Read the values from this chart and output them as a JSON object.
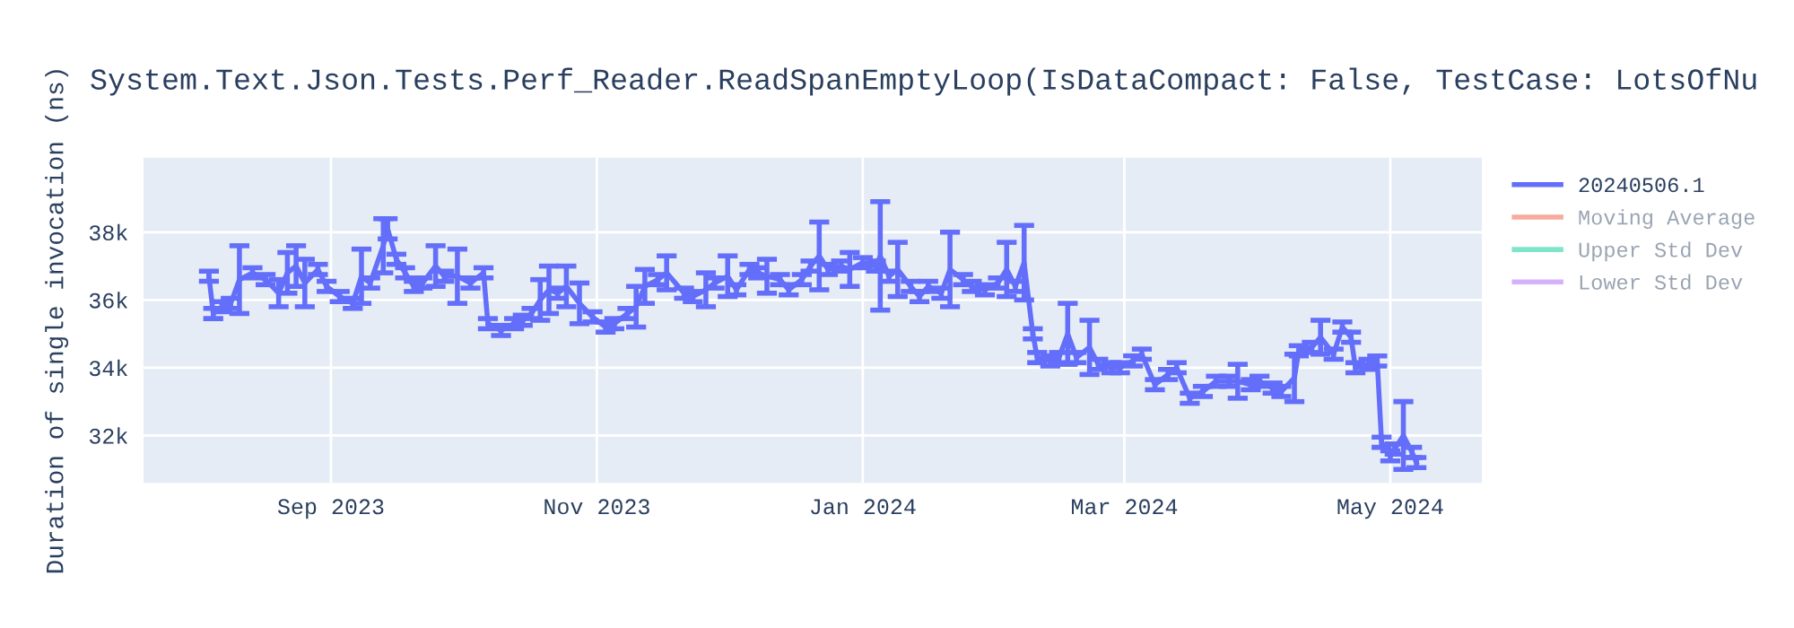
{
  "chart_data": {
    "type": "line",
    "title": "System.Text.Json.Tests.Perf_Reader.ReadSpanEmptyLoop(IsDataCompact: False, TestCase: LotsOfNu",
    "ylabel": "Duration of single invocation (ns)",
    "x": [
      "2023-08-04",
      "2023-08-05",
      "2023-08-07",
      "2023-08-09",
      "2023-08-11",
      "2023-08-14",
      "2023-08-17",
      "2023-08-20",
      "2023-08-22",
      "2023-08-24",
      "2023-08-26",
      "2023-08-29",
      "2023-08-31",
      "2023-09-03",
      "2023-09-06",
      "2023-09-08",
      "2023-09-10",
      "2023-09-13",
      "2023-09-14",
      "2023-09-16",
      "2023-09-18",
      "2023-09-20",
      "2023-09-22",
      "2023-09-25",
      "2023-09-27",
      "2023-09-30",
      "2023-10-03",
      "2023-10-06",
      "2023-10-07",
      "2023-10-10",
      "2023-10-13",
      "2023-10-15",
      "2023-10-17",
      "2023-10-19",
      "2023-10-21",
      "2023-10-23",
      "2023-10-25",
      "2023-10-28",
      "2023-10-31",
      "2023-11-03",
      "2023-11-05",
      "2023-11-08",
      "2023-11-10",
      "2023-11-12",
      "2023-11-15",
      "2023-11-17",
      "2023-11-21",
      "2023-11-23",
      "2023-11-26",
      "2023-11-28",
      "2023-12-01",
      "2023-12-03",
      "2023-12-06",
      "2023-12-08",
      "2023-12-10",
      "2023-12-13",
      "2023-12-15",
      "2023-12-18",
      "2023-12-20",
      "2023-12-22",
      "2023-12-24",
      "2023-12-27",
      "2023-12-29",
      "2024-01-01",
      "2024-01-04",
      "2024-01-05",
      "2024-01-07",
      "2024-01-09",
      "2024-01-12",
      "2024-01-14",
      "2024-01-16",
      "2024-01-19",
      "2024-01-21",
      "2024-01-24",
      "2024-01-26",
      "2024-01-29",
      "2024-02-01",
      "2024-02-03",
      "2024-02-05",
      "2024-02-07",
      "2024-02-09",
      "2024-02-10",
      "2024-02-13",
      "2024-02-15",
      "2024-02-17",
      "2024-02-19",
      "2024-02-22",
      "2024-02-24",
      "2024-02-27",
      "2024-02-29",
      "2024-03-03",
      "2024-03-05",
      "2024-03-08",
      "2024-03-11",
      "2024-03-13",
      "2024-03-16",
      "2024-03-19",
      "2024-03-22",
      "2024-03-25",
      "2024-03-27",
      "2024-03-30",
      "2024-04-01",
      "2024-04-04",
      "2024-04-06",
      "2024-04-09",
      "2024-04-10",
      "2024-04-13",
      "2024-04-15",
      "2024-04-18",
      "2024-04-20",
      "2024-04-22",
      "2024-04-23",
      "2024-04-26",
      "2024-04-28",
      "2024-04-29",
      "2024-05-01",
      "2024-05-02",
      "2024-05-04",
      "2024-05-06",
      "2024-05-07"
    ],
    "series": [
      {
        "name": "20240506.1",
        "color": "#636efa",
        "values": [
          36700,
          35600,
          35800,
          35900,
          36600,
          36800,
          36600,
          36200,
          36800,
          37000,
          36500,
          36900,
          36400,
          36100,
          35900,
          36700,
          36500,
          37600,
          38100,
          37200,
          36800,
          36400,
          36500,
          37000,
          36700,
          36700,
          36500,
          36800,
          35300,
          35100,
          35300,
          35400,
          35600,
          36000,
          36300,
          36200,
          36400,
          35900,
          35500,
          35200,
          35300,
          35600,
          35800,
          36400,
          36600,
          36800,
          36200,
          36100,
          36300,
          36500,
          36700,
          36300,
          36900,
          36800,
          36700,
          36600,
          36300,
          36600,
          37000,
          37300,
          36900,
          37000,
          36900,
          37100,
          37000,
          37300,
          36700,
          36900,
          36400,
          36100,
          36400,
          36200,
          36900,
          36600,
          36400,
          36300,
          36500,
          36900,
          36400,
          37100,
          35000,
          34300,
          34200,
          34300,
          35000,
          34300,
          34600,
          34100,
          34000,
          34000,
          34200,
          34400,
          33500,
          33800,
          34000,
          33100,
          33300,
          33600,
          33600,
          33600,
          33500,
          33600,
          33400,
          33300,
          33700,
          34500,
          34600,
          34900,
          34400,
          35200,
          34900,
          34000,
          34100,
          34200,
          31800,
          31400,
          31600,
          32000,
          31500,
          31200
        ],
        "errors": [
          150,
          150,
          150,
          150,
          1000,
          150,
          150,
          400,
          600,
          600,
          700,
          150,
          150,
          150,
          150,
          800,
          150,
          800,
          300,
          150,
          150,
          150,
          150,
          600,
          150,
          800,
          150,
          150,
          150,
          150,
          150,
          150,
          150,
          600,
          700,
          150,
          600,
          600,
          150,
          150,
          150,
          150,
          600,
          500,
          150,
          500,
          150,
          150,
          500,
          150,
          600,
          150,
          150,
          150,
          500,
          150,
          150,
          150,
          150,
          1000,
          150,
          150,
          500,
          150,
          150,
          1600,
          150,
          800,
          150,
          150,
          150,
          150,
          1100,
          150,
          150,
          150,
          150,
          800,
          150,
          1100,
          150,
          150,
          150,
          150,
          900,
          150,
          800,
          150,
          150,
          150,
          150,
          150,
          150,
          150,
          150,
          150,
          150,
          150,
          150,
          500,
          150,
          150,
          150,
          150,
          700,
          150,
          150,
          500,
          150,
          150,
          150,
          150,
          150,
          150,
          150,
          150,
          150,
          1000,
          150,
          150
        ]
      },
      {
        "name": "Moving Average",
        "color": "#ef553b",
        "values": [
          null,
          null,
          null,
          null,
          null,
          null,
          null,
          null,
          null,
          null,
          null,
          null,
          null,
          null,
          null,
          null,
          null,
          null,
          null,
          null,
          null,
          null,
          null,
          null,
          null,
          null,
          null,
          null,
          null,
          null,
          null,
          null,
          null,
          null,
          null,
          null,
          null,
          null,
          null,
          null,
          null,
          null,
          null,
          null,
          null,
          null,
          null,
          null,
          null,
          null,
          null,
          null,
          null,
          null,
          null,
          null,
          null,
          null,
          null,
          null,
          null,
          null,
          null,
          null,
          null,
          null,
          null,
          null,
          null,
          null,
          null,
          null,
          null,
          null,
          null,
          null,
          null,
          null,
          null,
          null,
          null,
          null,
          null,
          null,
          null,
          null,
          null,
          null,
          null,
          null,
          null,
          null,
          null,
          null,
          null,
          null,
          null,
          null,
          null,
          null,
          null,
          null,
          null,
          null,
          null,
          null,
          null,
          null,
          null,
          null,
          null,
          null,
          null,
          null,
          null,
          null,
          null,
          null,
          null,
          null
        ]
      },
      {
        "name": "Upper Std Dev",
        "color": "#00cc96",
        "values": [
          null,
          null,
          null,
          null,
          null,
          null,
          null,
          null,
          null,
          null,
          null,
          null,
          null,
          null,
          null,
          null,
          null,
          null,
          null,
          null,
          null,
          null,
          null,
          null,
          null,
          null,
          null,
          null,
          null,
          null,
          null,
          null,
          null,
          null,
          null,
          null,
          null,
          null,
          null,
          null,
          null,
          null,
          null,
          null,
          null,
          null,
          null,
          null,
          null,
          null,
          null,
          null,
          null,
          null,
          null,
          null,
          null,
          null,
          null,
          null,
          null,
          null,
          null,
          null,
          null,
          null,
          null,
          null,
          null,
          null,
          null,
          null,
          null,
          null,
          null,
          null,
          null,
          null,
          null,
          null,
          null,
          null,
          null,
          null,
          null,
          null,
          null,
          null,
          null,
          null,
          null,
          null,
          null,
          null,
          null,
          null,
          null,
          null,
          null,
          null,
          null,
          null,
          null,
          null,
          null,
          null,
          null,
          null,
          null,
          null,
          null,
          null,
          null,
          null,
          null,
          null,
          null,
          null,
          null,
          null
        ]
      },
      {
        "name": "Lower Std Dev",
        "color": "#ab63fa",
        "values": [
          null,
          null,
          null,
          null,
          null,
          null,
          null,
          null,
          null,
          null,
          null,
          null,
          null,
          null,
          null,
          null,
          null,
          null,
          null,
          null,
          null,
          null,
          null,
          null,
          null,
          null,
          null,
          null,
          null,
          null,
          null,
          null,
          null,
          null,
          null,
          null,
          null,
          null,
          null,
          null,
          null,
          null,
          null,
          null,
          null,
          null,
          null,
          null,
          null,
          null,
          null,
          null,
          null,
          null,
          null,
          null,
          null,
          null,
          null,
          null,
          null,
          null,
          null,
          null,
          null,
          null,
          null,
          null,
          null,
          null,
          null,
          null,
          null,
          null,
          null,
          null,
          null,
          null,
          null,
          null,
          null,
          null,
          null,
          null,
          null,
          null,
          null,
          null,
          null,
          null,
          null,
          null,
          null,
          null,
          null,
          null,
          null,
          null,
          null,
          null,
          null,
          null,
          null,
          null,
          null,
          null,
          null,
          null,
          null,
          null,
          null,
          null,
          null,
          null,
          null,
          null,
          null,
          null,
          null,
          null
        ]
      }
    ],
    "xlim": [
      "2023-07-20",
      "2024-05-22"
    ],
    "xticks": [
      {
        "value": "2023-09-01",
        "label": "Sep 2023"
      },
      {
        "value": "2023-11-01",
        "label": "Nov 2023"
      },
      {
        "value": "2024-01-01",
        "label": "Jan 2024"
      },
      {
        "value": "2024-03-01",
        "label": "Mar 2024"
      },
      {
        "value": "2024-05-01",
        "label": "May 2024"
      }
    ],
    "ylim": [
      30600,
      40200
    ],
    "yticks": [
      {
        "value": 32000,
        "label": "32k"
      },
      {
        "value": 34000,
        "label": "34k"
      },
      {
        "value": 36000,
        "label": "36k"
      },
      {
        "value": 38000,
        "label": "38k"
      }
    ],
    "grid": true,
    "legend": "right",
    "marker": "none",
    "line_style": "solid"
  }
}
